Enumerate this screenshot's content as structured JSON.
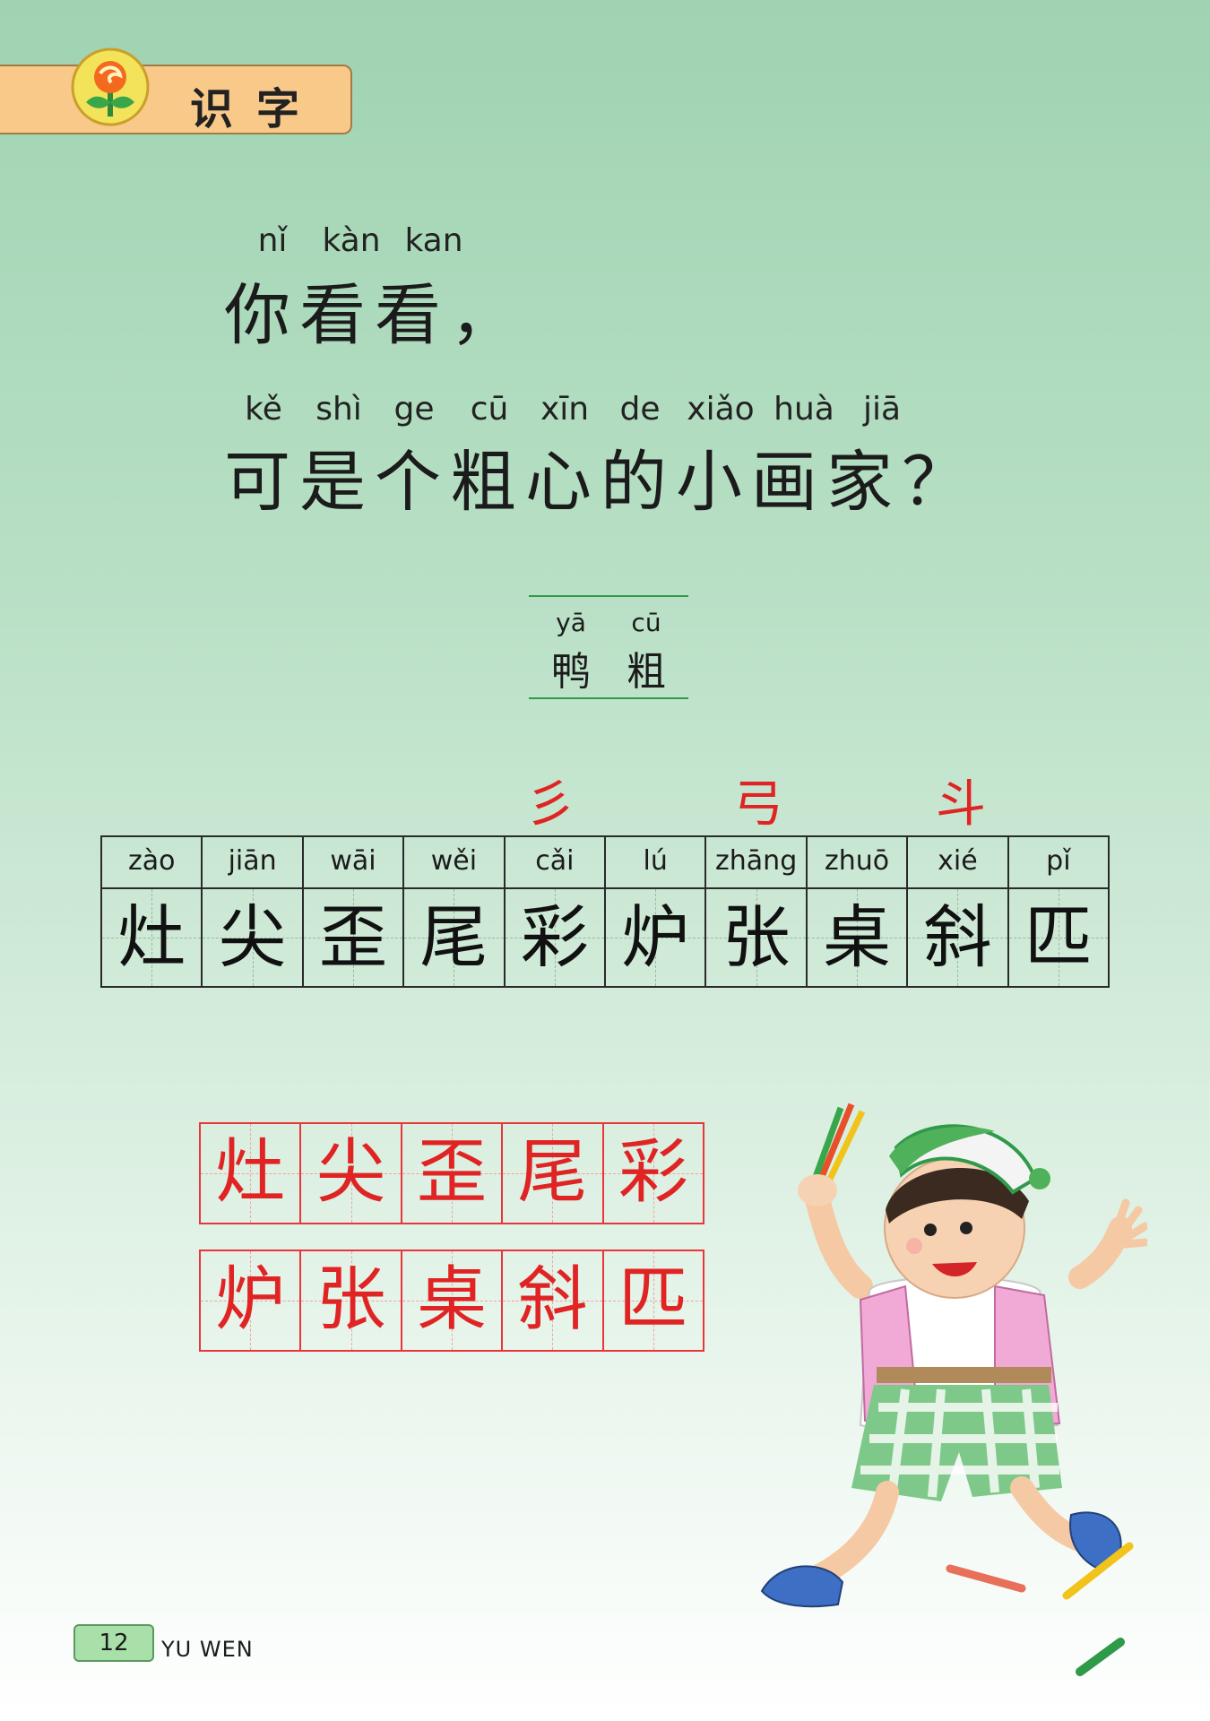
{
  "header": {
    "title": "识字",
    "logo_icon": "flower-sun-logo-icon"
  },
  "poem": {
    "line1_pinyin": [
      "nǐ",
      "kàn",
      "kan"
    ],
    "line1": "你看看，",
    "line2_pinyin": [
      "kě",
      "shì",
      "ge",
      "cū",
      "xīn",
      "de",
      "xiǎo",
      "huà",
      "jiā"
    ],
    "line2": "可是个粗心的小画家？"
  },
  "new_words": {
    "pinyin": [
      "yā",
      "cū"
    ],
    "chars": [
      "鸭",
      "粗"
    ]
  },
  "radicals": [
    "彡",
    "弓",
    "斗"
  ],
  "char_table": {
    "pinyin": [
      "zào",
      "jiān",
      "wāi",
      "wěi",
      "cǎi",
      "lú",
      "zhāng",
      "zhuō",
      "xié",
      "pǐ"
    ],
    "chars": [
      "灶",
      "尖",
      "歪",
      "尾",
      "彩",
      "炉",
      "张",
      "桌",
      "斜",
      "匹"
    ]
  },
  "writing_grid": {
    "row1": [
      "灶",
      "尖",
      "歪",
      "尾",
      "彩"
    ],
    "row2": [
      "炉",
      "张",
      "桌",
      "斜",
      "匹"
    ]
  },
  "footer": {
    "page_number": "12",
    "text": "YU WEN"
  },
  "illustration": {
    "name": "boy-with-pencils-illustration"
  },
  "colors": {
    "accent_red": "#e02424",
    "tab_orange": "#f9c98a",
    "green_line": "#2f9a4a"
  }
}
